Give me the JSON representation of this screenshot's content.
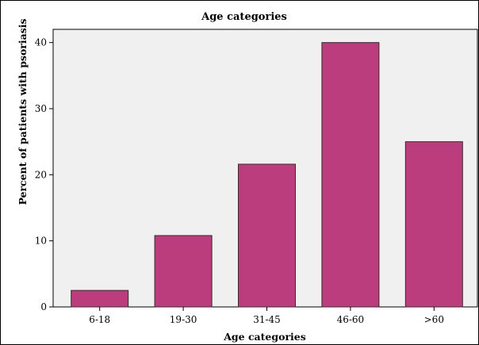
{
  "chart_data": {
    "type": "bar",
    "title": "Age categories",
    "xlabel": "Age categories",
    "ylabel": "Percent of patients with psoriasis",
    "categories": [
      "6-18",
      "19-30",
      "31-45",
      "46-60",
      ">60"
    ],
    "values": [
      2.5,
      10.8,
      21.6,
      40.0,
      25.0
    ],
    "ylim": [
      0,
      42
    ],
    "yticks": [
      0,
      10,
      20,
      30,
      40
    ],
    "grid": false,
    "legend": "none",
    "colors": {
      "bar_fill": "#bb3d7e",
      "bar_stroke": "#3a2a2a",
      "plot_background": "#f0f0f0",
      "page_background": "#ffffff"
    }
  }
}
